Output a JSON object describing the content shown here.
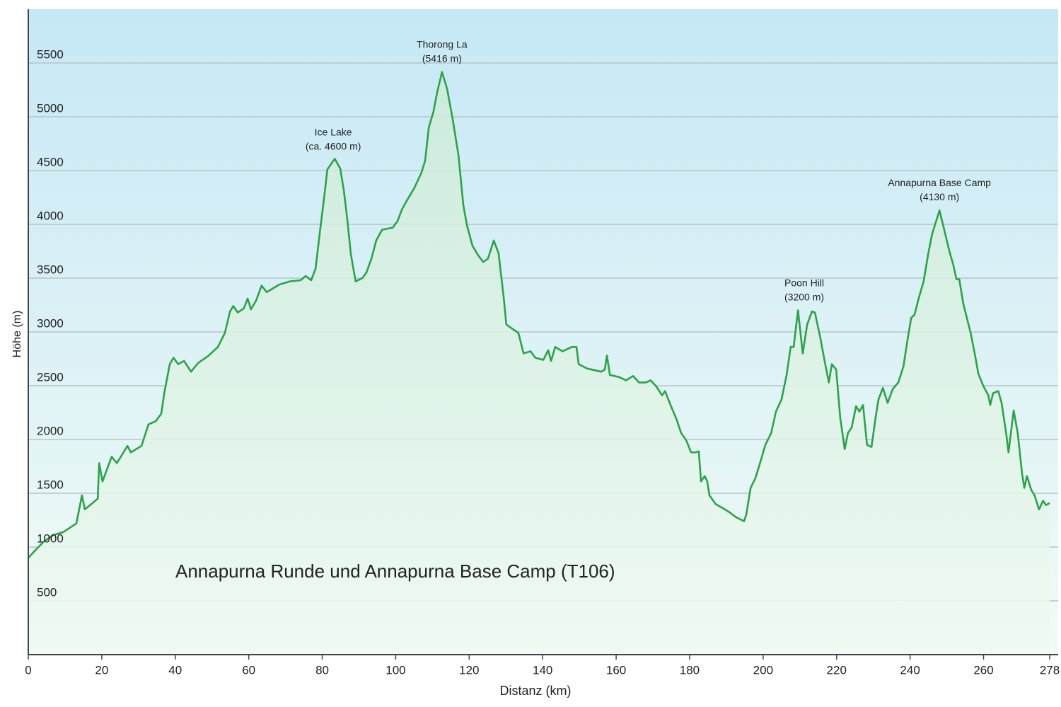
{
  "chart_data": {
    "type": "area",
    "title": "Annapurna Runde und Annapurna Base Camp (T106)",
    "x_label": "Distanz  (km)",
    "y_label": "Höhe (m)",
    "color": "#2ca24a",
    "grid": true,
    "xlim": [
      0,
      278
    ],
    "ylim": [
      0,
      6000
    ],
    "xticks": [
      0,
      20,
      40,
      60,
      80,
      100,
      120,
      140,
      160,
      180,
      200,
      220,
      240,
      260,
      278
    ],
    "yticks": [
      500,
      1000,
      1500,
      2000,
      2500,
      3000,
      3500,
      4000,
      4500,
      5000,
      5500
    ],
    "x": [
      0,
      1.9,
      4.2,
      6.7,
      9.6,
      13.1,
      14.6,
      15.4,
      18.9,
      19.3,
      20.2,
      21.6,
      22.7,
      24.1,
      27.0,
      27.9,
      30.8,
      32.7,
      34.7,
      36.2,
      37.0,
      38.5,
      39.5,
      40.8,
      42.4,
      44.3,
      46.2,
      49.1,
      51.6,
      53.5,
      54.9,
      55.8,
      57.0,
      58.7,
      59.7,
      60.6,
      62.0,
      63.5,
      64.9,
      68.3,
      71.2,
      74.1,
      75.5,
      77.0,
      78.2,
      79.3,
      80.5,
      81.4,
      83.4,
      84.9,
      85.9,
      86.8,
      87.8,
      89.1,
      90.9,
      92.0,
      93.4,
      94.7,
      96.3,
      99.2,
      100.5,
      101.7,
      103.2,
      105.1,
      107.0,
      108.0,
      109.0,
      110.3,
      111.3,
      112.6,
      114.0,
      115.5,
      117.1,
      118.4,
      119.4,
      120.9,
      122.3,
      123.8,
      125.1,
      126.7,
      128.0,
      129.4,
      130.1,
      131.7,
      133.4,
      134.8,
      136.7,
      138.0,
      140.2,
      141.5,
      142.3,
      143.4,
      145.4,
      147.9,
      149.2,
      149.8,
      152.1,
      155.9,
      156.9,
      157.5,
      158.3,
      160.8,
      162.7,
      164.6,
      166.2,
      168.1,
      169.4,
      171.0,
      172.5,
      173.3,
      174.8,
      176.4,
      177.7,
      179.1,
      180.4,
      181.6,
      182.5,
      183.1,
      184.1,
      184.8,
      185.4,
      187.1,
      189.6,
      191.0,
      192.5,
      194.8,
      195.4,
      196.6,
      197.9,
      199.5,
      200.6,
      202.2,
      203.5,
      205.0,
      206.4,
      207.5,
      208.3,
      209.5,
      210.8,
      212.0,
      213.3,
      214.1,
      215.6,
      216.8,
      217.9,
      218.7,
      219.9,
      221.0,
      222.2,
      223.1,
      224.1,
      225.3,
      226.2,
      227.2,
      228.3,
      229.5,
      230.6,
      231.4,
      232.6,
      233.9,
      235.3,
      236.8,
      238.2,
      239.1,
      240.3,
      241.2,
      242.4,
      243.7,
      244.9,
      246.0,
      248.0,
      249.3,
      250.7,
      251.8,
      252.6,
      253.4,
      254.5,
      256.5,
      257.6,
      258.6,
      259.9,
      261.3,
      261.8,
      262.6,
      264.0,
      264.9,
      266.1,
      266.8,
      268.2,
      269.3,
      270.5,
      271.1,
      271.8,
      273.0,
      273.9,
      275.1,
      276.2,
      277.0,
      278.0
    ],
    "values": [
      900,
      970,
      1050,
      1110,
      1140,
      1220,
      1480,
      1350,
      1450,
      1780,
      1610,
      1740,
      1840,
      1780,
      1940,
      1880,
      1940,
      2140,
      2170,
      2240,
      2430,
      2700,
      2760,
      2700,
      2730,
      2630,
      2710,
      2780,
      2860,
      2990,
      3190,
      3240,
      3180,
      3220,
      3310,
      3210,
      3290,
      3430,
      3370,
      3440,
      3470,
      3480,
      3520,
      3480,
      3590,
      3910,
      4240,
      4510,
      4610,
      4520,
      4310,
      4050,
      3720,
      3470,
      3500,
      3550,
      3680,
      3850,
      3950,
      3970,
      4030,
      4140,
      4230,
      4340,
      4480,
      4590,
      4900,
      5050,
      5230,
      5416,
      5260,
      4980,
      4640,
      4180,
      3990,
      3800,
      3720,
      3650,
      3680,
      3850,
      3730,
      3320,
      3070,
      3030,
      2990,
      2800,
      2820,
      2760,
      2740,
      2830,
      2730,
      2860,
      2820,
      2860,
      2860,
      2700,
      2660,
      2630,
      2650,
      2780,
      2600,
      2580,
      2550,
      2590,
      2530,
      2530,
      2550,
      2490,
      2410,
      2450,
      2320,
      2190,
      2060,
      1990,
      1880,
      1880,
      1890,
      1610,
      1660,
      1610,
      1480,
      1400,
      1350,
      1320,
      1280,
      1240,
      1300,
      1550,
      1640,
      1820,
      1950,
      2060,
      2260,
      2370,
      2600,
      2860,
      2860,
      3200,
      2800,
      3070,
      3190,
      3180,
      2940,
      2720,
      2530,
      2700,
      2650,
      2200,
      1910,
      2060,
      2110,
      2310,
      2260,
      2320,
      1950,
      1930,
      2200,
      2370,
      2480,
      2340,
      2470,
      2530,
      2680,
      2880,
      3130,
      3160,
      3320,
      3470,
      3720,
      3910,
      4130,
      3950,
      3750,
      3620,
      3490,
      3490,
      3260,
      2990,
      2800,
      2610,
      2500,
      2410,
      2320,
      2430,
      2450,
      2340,
      2070,
      1880,
      2270,
      2060,
      1680,
      1550,
      1660,
      1530,
      1480,
      1350,
      1430,
      1390,
      1410
    ],
    "annotations": [
      {
        "label": "Ice Lake",
        "sublabel": "(ca. 4600 m)",
        "x": 83,
        "y": 4600
      },
      {
        "label": "Thorong La",
        "sublabel": "(5416 m)",
        "x": 112.6,
        "y": 5416
      },
      {
        "label": "Poon Hill",
        "sublabel": "(3200 m)",
        "x": 211.2,
        "y": 3200
      },
      {
        "label": "Annapurna Base Camp",
        "sublabel": "(4130 m)",
        "x": 248,
        "y": 4130
      }
    ]
  }
}
